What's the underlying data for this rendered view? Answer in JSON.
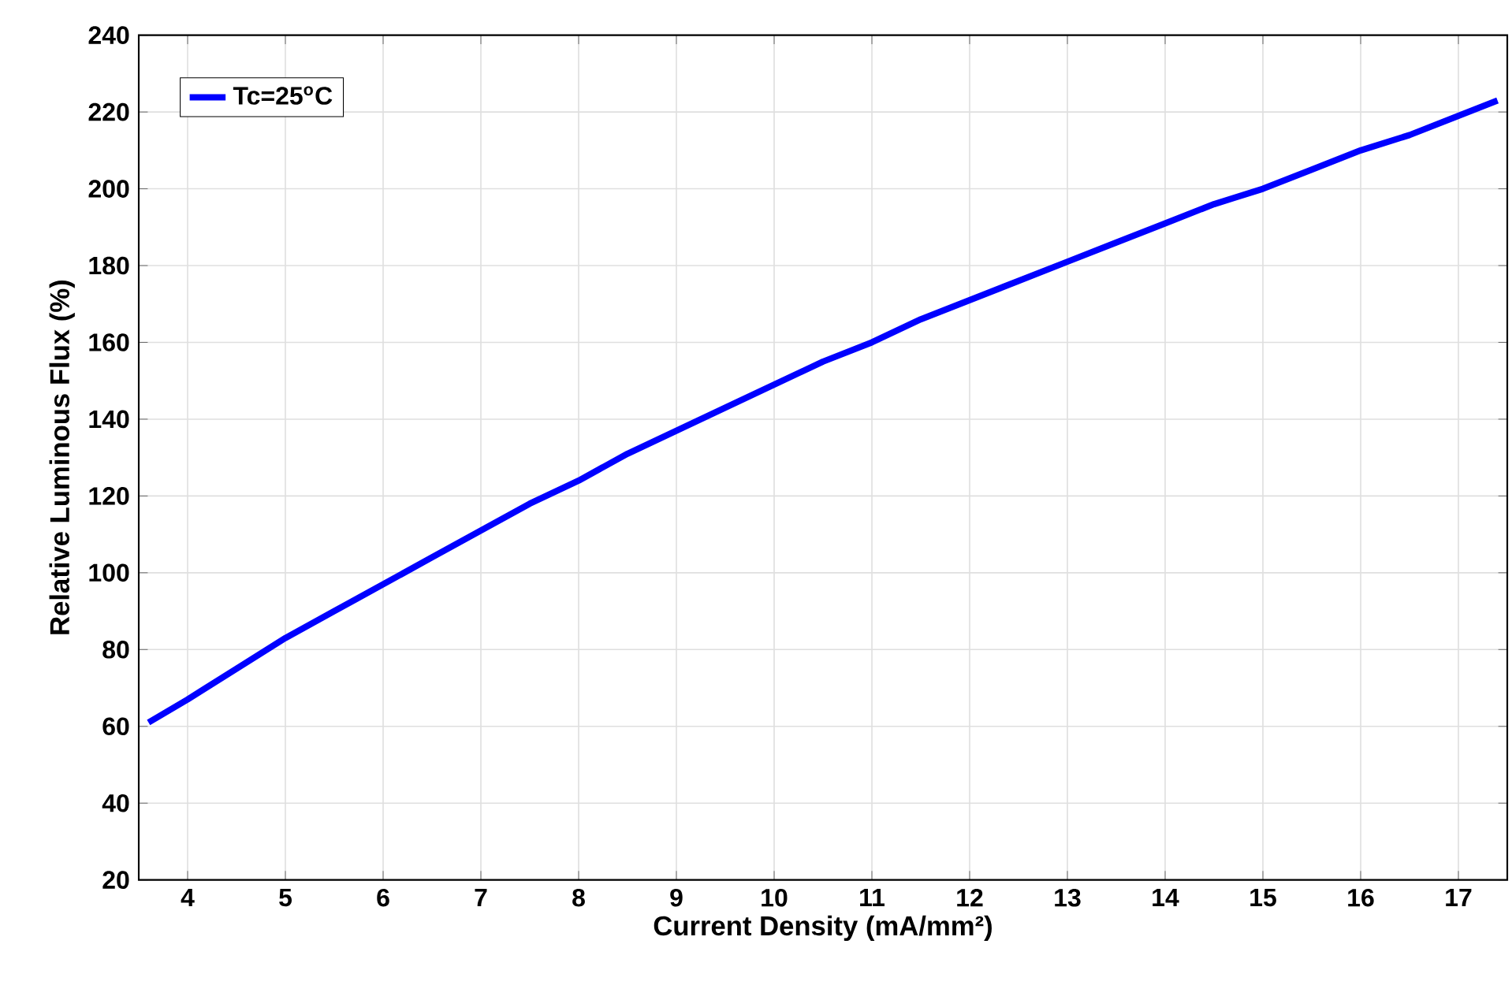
{
  "chart_data": {
    "type": "line",
    "xlabel": "Current Density (mA/mm²)",
    "ylabel": "Relative Luminous Flux (%)",
    "x": [
      3.6,
      4,
      4.5,
      5,
      5.5,
      6,
      6.5,
      7,
      7.5,
      8,
      8.5,
      9,
      9.5,
      10,
      10.5,
      11,
      11.5,
      12,
      12.5,
      13,
      13.5,
      14,
      14.5,
      15,
      15.5,
      16,
      16.5,
      17,
      17.4
    ],
    "series": [
      {
        "name": "Tc=25$^{o}$C",
        "color": "#0000ff",
        "values": [
          61,
          67,
          75,
          83,
          90,
          97,
          104,
          111,
          118,
          124,
          131,
          137,
          143,
          149,
          155,
          160,
          166,
          171,
          176,
          181,
          186,
          191,
          196,
          200,
          205,
          210,
          214,
          219,
          223
        ]
      }
    ],
    "xlim": [
      3.5,
      17.5
    ],
    "ylim": [
      20,
      240
    ],
    "xticks": [
      4,
      5,
      6,
      7,
      8,
      9,
      10,
      11,
      12,
      13,
      14,
      15,
      16,
      17
    ],
    "yticks": [
      20,
      40,
      60,
      80,
      100,
      120,
      140,
      160,
      180,
      200,
      220,
      240
    ],
    "grid": true,
    "legend": "top left",
    "marker": "none",
    "line_style": "solid"
  }
}
